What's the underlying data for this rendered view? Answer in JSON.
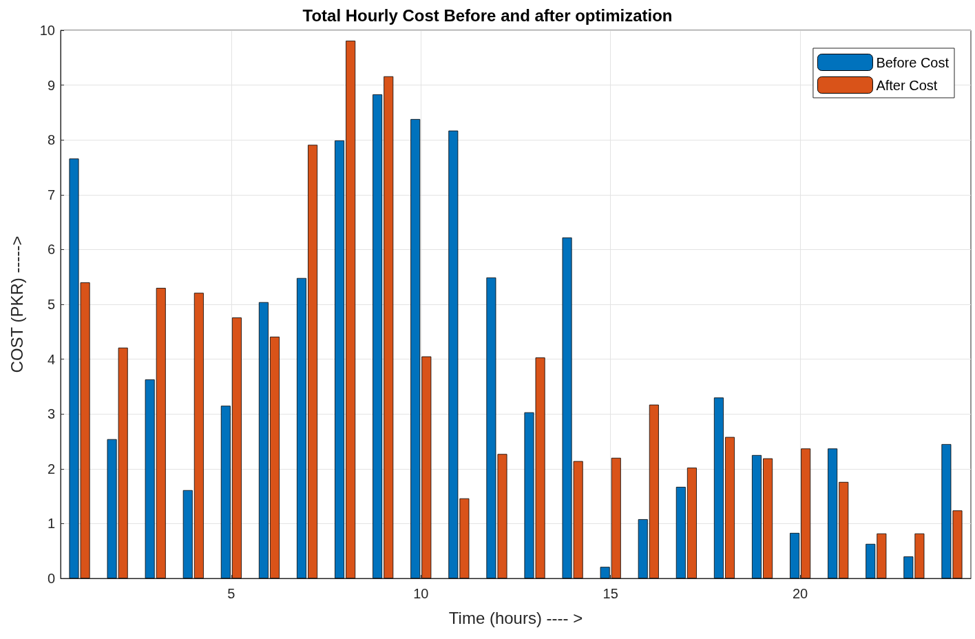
{
  "chart_data": {
    "type": "bar",
    "title": "Total Hourly Cost Before and after optimization",
    "xlabel": "Time (hours) ---- >",
    "ylabel": "COST (PKR) ----->",
    "x": [
      1,
      2,
      3,
      4,
      5,
      6,
      7,
      8,
      9,
      10,
      11,
      12,
      13,
      14,
      15,
      16,
      17,
      18,
      19,
      20,
      21,
      22,
      23,
      24
    ],
    "series": [
      {
        "name": "Before Cost",
        "color": "#0072bd",
        "values": [
          7.66,
          2.54,
          3.63,
          1.61,
          3.15,
          5.04,
          5.48,
          7.99,
          8.83,
          8.38,
          8.17,
          5.49,
          3.03,
          6.22,
          0.21,
          1.08,
          1.67,
          3.3,
          2.25,
          0.83,
          2.37,
          0.63,
          0.4,
          2.45
        ]
      },
      {
        "name": "After Cost",
        "color": "#d95319",
        "values": [
          5.4,
          4.21,
          5.3,
          5.21,
          4.76,
          4.41,
          7.91,
          9.81,
          9.16,
          4.05,
          1.46,
          2.27,
          4.03,
          2.14,
          2.2,
          3.17,
          2.02,
          2.58,
          2.19,
          2.37,
          1.76,
          0.82,
          0.82,
          1.24
        ]
      }
    ],
    "xlim": [
      0.5,
      24.5
    ],
    "xticks": [
      5,
      10,
      15,
      20
    ],
    "ylim": [
      0,
      10
    ],
    "yticks": [
      0,
      1,
      2,
      3,
      4,
      5,
      6,
      7,
      8,
      9,
      10
    ],
    "grid": true,
    "legend": "top right"
  }
}
